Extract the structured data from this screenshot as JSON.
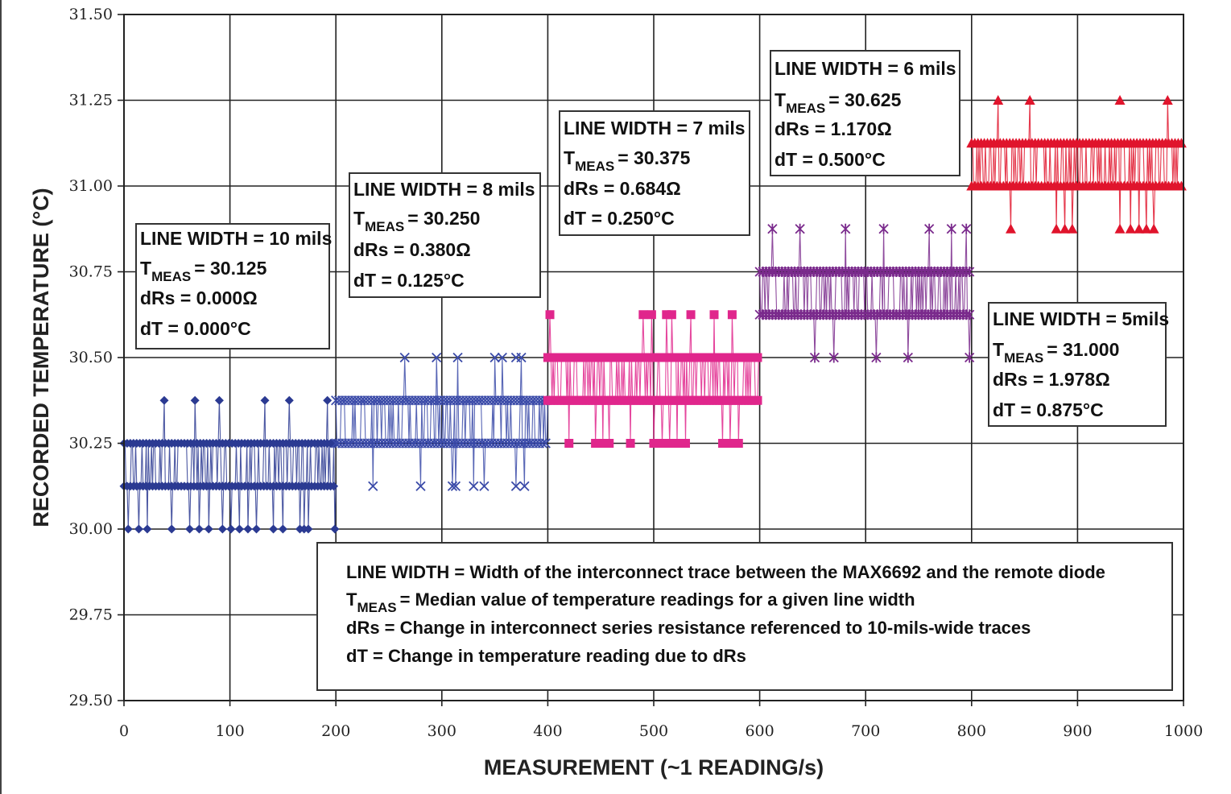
{
  "chart_data": {
    "type": "line",
    "title": "",
    "xlabel": "MEASUREMENT (~1 READING/s)",
    "ylabel": "RECORDED TEMPERATURE (°C)",
    "xlim": [
      0,
      1000
    ],
    "ylim": [
      29.5,
      31.5
    ],
    "x_ticks": [
      "0",
      "100",
      "200",
      "300",
      "400",
      "500",
      "600",
      "700",
      "800",
      "900",
      "1000"
    ],
    "y_ticks": [
      "29.50",
      "29.75",
      "30.00",
      "30.25",
      "30.50",
      "30.75",
      "31.00",
      "31.25",
      "31.50"
    ],
    "grid": true,
    "series": [
      {
        "name": "LINE WIDTH = 10 mils",
        "color": "#2b3a92",
        "marker": "diamond",
        "x_range": [
          0,
          200
        ],
        "levels": [
          30.125,
          30.25
        ],
        "outliers_high": [
          {
            "x": 38,
            "y": 30.375
          },
          {
            "x": 67,
            "y": 30.375
          },
          {
            "x": 90,
            "y": 30.375
          },
          {
            "x": 133,
            "y": 30.375
          },
          {
            "x": 156,
            "y": 30.375
          },
          {
            "x": 192,
            "y": 30.375
          }
        ],
        "outliers_low": [
          {
            "x": 4,
            "y": 30.0
          },
          {
            "x": 14,
            "y": 30.0
          },
          {
            "x": 22,
            "y": 30.0
          },
          {
            "x": 45,
            "y": 30.0
          },
          {
            "x": 62,
            "y": 30.0
          },
          {
            "x": 71,
            "y": 30.0
          },
          {
            "x": 80,
            "y": 30.0
          },
          {
            "x": 93,
            "y": 30.0
          },
          {
            "x": 101,
            "y": 30.0
          },
          {
            "x": 109,
            "y": 30.0
          },
          {
            "x": 117,
            "y": 30.0
          },
          {
            "x": 125,
            "y": 30.0
          },
          {
            "x": 141,
            "y": 30.0
          },
          {
            "x": 150,
            "y": 30.0
          },
          {
            "x": 166,
            "y": 30.0
          },
          {
            "x": 170,
            "y": 30.0
          },
          {
            "x": 174,
            "y": 30.0
          },
          {
            "x": 199,
            "y": 30.0
          }
        ]
      },
      {
        "name": "LINE WIDTH = 8 mils",
        "color": "#3a4aa8",
        "marker": "x",
        "x_range": [
          200,
          400
        ],
        "levels": [
          30.25,
          30.375
        ],
        "outliers_high": [
          {
            "x": 265,
            "y": 30.5
          },
          {
            "x": 295,
            "y": 30.5
          },
          {
            "x": 315,
            "y": 30.5
          },
          {
            "x": 350,
            "y": 30.5
          },
          {
            "x": 357,
            "y": 30.5
          },
          {
            "x": 370,
            "y": 30.5
          },
          {
            "x": 375,
            "y": 30.5
          }
        ],
        "outliers_low": [
          {
            "x": 235,
            "y": 30.125
          },
          {
            "x": 280,
            "y": 30.125
          },
          {
            "x": 310,
            "y": 30.125
          },
          {
            "x": 313,
            "y": 30.125
          },
          {
            "x": 330,
            "y": 30.125
          },
          {
            "x": 340,
            "y": 30.125
          },
          {
            "x": 370,
            "y": 30.125
          },
          {
            "x": 378,
            "y": 30.125
          }
        ]
      },
      {
        "name": "LINE WIDTH = 7 mils",
        "color": "#e0268c",
        "marker": "square",
        "x_range": [
          400,
          600
        ],
        "levels": [
          30.375,
          30.5
        ],
        "outliers_high": [
          {
            "x": 402,
            "y": 30.625
          },
          {
            "x": 490,
            "y": 30.625
          },
          {
            "x": 498,
            "y": 30.625
          },
          {
            "x": 512,
            "y": 30.625
          },
          {
            "x": 517,
            "y": 30.625
          },
          {
            "x": 535,
            "y": 30.625
          },
          {
            "x": 557,
            "y": 30.625
          },
          {
            "x": 574,
            "y": 30.625
          }
        ],
        "outliers_low": [
          {
            "x": 420,
            "y": 30.25
          },
          {
            "x": 445,
            "y": 30.25
          },
          {
            "x": 452,
            "y": 30.25
          },
          {
            "x": 458,
            "y": 30.25
          },
          {
            "x": 478,
            "y": 30.25
          },
          {
            "x": 500,
            "y": 30.25
          },
          {
            "x": 508,
            "y": 30.25
          },
          {
            "x": 515,
            "y": 30.25
          },
          {
            "x": 522,
            "y": 30.25
          },
          {
            "x": 530,
            "y": 30.25
          },
          {
            "x": 565,
            "y": 30.25
          },
          {
            "x": 572,
            "y": 30.25
          },
          {
            "x": 580,
            "y": 30.25
          }
        ]
      },
      {
        "name": "LINE WIDTH = 6 mils",
        "color": "#7a2a8c",
        "marker": "asterisk",
        "x_range": [
          600,
          800
        ],
        "levels": [
          30.625,
          30.75
        ],
        "outliers_high": [
          {
            "x": 612,
            "y": 30.875
          },
          {
            "x": 638,
            "y": 30.875
          },
          {
            "x": 681,
            "y": 30.875
          },
          {
            "x": 717,
            "y": 30.875
          },
          {
            "x": 760,
            "y": 30.875
          },
          {
            "x": 781,
            "y": 30.875
          },
          {
            "x": 795,
            "y": 30.875
          }
        ],
        "outliers_low": [
          {
            "x": 652,
            "y": 30.5
          },
          {
            "x": 670,
            "y": 30.5
          },
          {
            "x": 710,
            "y": 30.5
          },
          {
            "x": 740,
            "y": 30.5
          },
          {
            "x": 798,
            "y": 30.5
          }
        ]
      },
      {
        "name": "LINE WIDTH = 5mils",
        "color": "#e0142c",
        "marker": "triangle",
        "x_range": [
          800,
          1000
        ],
        "levels": [
          31.0,
          31.125
        ],
        "outliers_high": [
          {
            "x": 825,
            "y": 31.25
          },
          {
            "x": 855,
            "y": 31.25
          },
          {
            "x": 940,
            "y": 31.25
          },
          {
            "x": 985,
            "y": 31.25
          }
        ],
        "outliers_low": [
          {
            "x": 837,
            "y": 30.875
          },
          {
            "x": 880,
            "y": 30.875
          },
          {
            "x": 888,
            "y": 30.875
          },
          {
            "x": 895,
            "y": 30.875
          },
          {
            "x": 940,
            "y": 30.875
          },
          {
            "x": 950,
            "y": 30.875
          },
          {
            "x": 958,
            "y": 30.875
          },
          {
            "x": 965,
            "y": 30.875
          },
          {
            "x": 972,
            "y": 30.875
          }
        ]
      }
    ],
    "annotations": [
      {
        "line1": "LINE WIDTH = 10 mils",
        "tmeas": "= 30.125",
        "drs": "dRs = 0.000Ω",
        "dt": "dT = 0.000°C"
      },
      {
        "line1": "LINE WIDTH = 8 mils",
        "tmeas": "= 30.250",
        "drs": "dRs = 0.380Ω",
        "dt": "dT = 0.125°C"
      },
      {
        "line1": "LINE WIDTH = 7 mils",
        "tmeas": "= 30.375",
        "drs": "dRs = 0.684Ω",
        "dt": "dT = 0.250°C"
      },
      {
        "line1": "LINE WIDTH = 6 mils",
        "tmeas": "= 30.625",
        "drs": "dRs = 1.170Ω",
        "dt": "dT = 0.500°C"
      },
      {
        "line1": "LINE WIDTH = 5mils",
        "tmeas": "= 31.000",
        "drs": "dRs = 1.978Ω",
        "dt": "dT = 0.875°C"
      }
    ],
    "tmeas_label": "T",
    "tmeas_sub": "MEAS",
    "legend_box": {
      "line1": "LINE WIDTH = Width of the interconnect trace between the MAX6692 and the remote diode",
      "line2": "= Median value of temperature readings for a given line width",
      "line3": "dRs = Change in interconnect series resistance referenced to 10-mils-wide traces",
      "line4": "dT = Change in temperature reading due to dRs"
    }
  }
}
